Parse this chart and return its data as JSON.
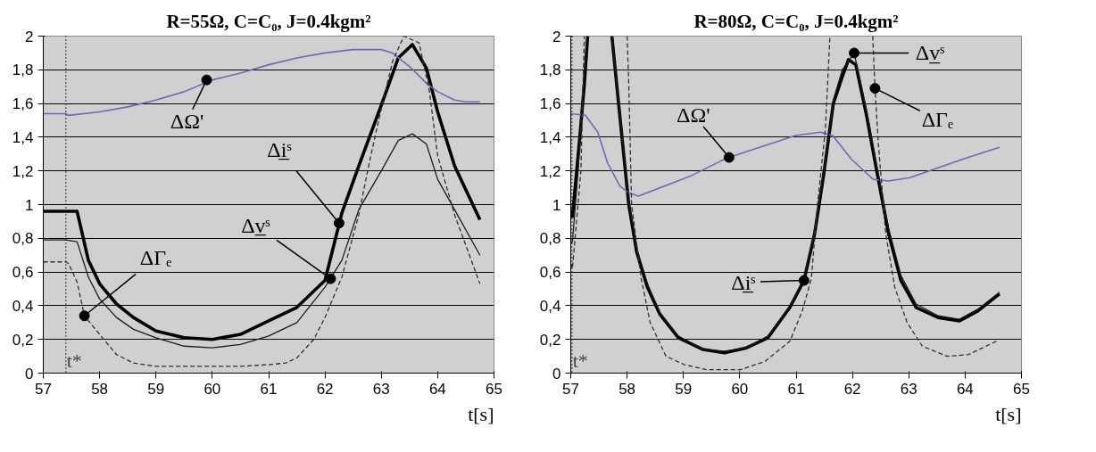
{
  "chart_data": [
    {
      "type": "line",
      "title": "R=55Ω, C=C₀, J=0.4kgm²",
      "xlabel": "t[s]",
      "xlim": [
        57,
        65
      ],
      "ylim": [
        0,
        2
      ],
      "xticks": [
        57,
        58,
        59,
        60,
        61,
        62,
        63,
        64,
        65
      ],
      "yticks": [
        0,
        {
          "value": 0.2,
          "label": "0,2"
        },
        {
          "value": 0.4,
          "label": "0,4"
        },
        {
          "value": 0.6,
          "label": "0,6"
        },
        {
          "value": 0.8,
          "label": "0,8"
        },
        1,
        {
          "value": 1.2,
          "label": "1,2"
        },
        {
          "value": 1.4,
          "label": "1,4"
        },
        {
          "value": 1.6,
          "label": "1,6"
        },
        {
          "value": 1.8,
          "label": "1,8"
        },
        2
      ],
      "grid": "y",
      "series": [
        {
          "color": "#6b6bb5",
          "line_style": "solid",
          "x": [
            57,
            57.4,
            57.45,
            58,
            58.5,
            59,
            59.5,
            60,
            60.5,
            61,
            61.5,
            62,
            62.5,
            63,
            63.2,
            63.5,
            63.8,
            64,
            64.3,
            64.5,
            64.75
          ],
          "values": [
            1.54,
            1.54,
            1.53,
            1.55,
            1.58,
            1.62,
            1.67,
            1.74,
            1.78,
            1.83,
            1.87,
            1.9,
            1.92,
            1.92,
            1.9,
            1.82,
            1.72,
            1.67,
            1.62,
            1.61,
            1.61
          ]
        },
        {
          "color": "#000000",
          "line_style": "solid",
          "x": [
            57,
            57.4,
            57.6,
            57.8,
            58,
            58.3,
            58.6,
            59,
            59.5,
            60,
            60.5,
            61,
            61.5,
            62,
            62.3,
            62.6,
            63,
            63.3,
            63.55,
            63.8,
            64,
            64.3,
            64.75
          ],
          "values": [
            0.96,
            0.96,
            0.96,
            0.67,
            0.53,
            0.41,
            0.33,
            0.25,
            0.21,
            0.2,
            0.23,
            0.31,
            0.39,
            0.55,
            0.95,
            1.23,
            1.59,
            1.87,
            1.95,
            1.81,
            1.55,
            1.23,
            0.91
          ]
        },
        {
          "color": "#1c1c1c",
          "line_style": "solid",
          "x": [
            57,
            57.4,
            57.6,
            57.8,
            58,
            58.3,
            58.6,
            59,
            59.5,
            60,
            60.5,
            61,
            61.5,
            62,
            62.3,
            62.6,
            63,
            63.3,
            63.55,
            63.8,
            64,
            64.3,
            64.75
          ],
          "values": [
            0.79,
            0.79,
            0.78,
            0.57,
            0.44,
            0.33,
            0.26,
            0.21,
            0.16,
            0.15,
            0.17,
            0.22,
            0.3,
            0.51,
            0.67,
            0.97,
            1.2,
            1.38,
            1.42,
            1.36,
            1.15,
            0.97,
            0.7
          ]
        },
        {
          "color": "#303030",
          "line_style": "dashed",
          "x": [
            57,
            57.4,
            57.45,
            57.6,
            57.73,
            58,
            58.3,
            58.6,
            59,
            59.5,
            60,
            60.5,
            61,
            61.3,
            61.5,
            61.8,
            62,
            62.3,
            62.6,
            62.8,
            63,
            63.2,
            63.4,
            63.67,
            63.85,
            64,
            64.3,
            64.75
          ],
          "values": [
            0.66,
            0.66,
            0.65,
            0.54,
            0.34,
            0.23,
            0.11,
            0.06,
            0.04,
            0.04,
            0.04,
            0.04,
            0.05,
            0.06,
            0.09,
            0.2,
            0.33,
            0.57,
            0.94,
            1.27,
            1.57,
            1.85,
            2.0,
            1.96,
            1.68,
            1.29,
            0.94,
            0.53
          ]
        }
      ],
      "ref_lines": [
        {
          "axis": "x",
          "value": 57.4,
          "label": "t*",
          "color": "#000000",
          "line_style": "dotted"
        }
      ],
      "annotations": [
        {
          "text": "ΔΩ'",
          "x": 59.9,
          "y": 1.74
        },
        {
          "text": "Δi̲ˢ",
          "x": 62.25,
          "y": 0.89
        },
        {
          "text": "Δv̲ˢ",
          "x": 62.1,
          "y": 0.56
        },
        {
          "text": "ΔΓₑ",
          "x": 57.73,
          "y": 0.34
        }
      ]
    },
    {
      "type": "line",
      "title": "R=80Ω, C=C₀, J=0.4kgm²",
      "xlabel": "t[s]",
      "xlim": [
        57,
        65
      ],
      "ylim": [
        0,
        2
      ],
      "xticks": [
        57,
        58,
        59,
        60,
        61,
        62,
        63,
        64,
        65
      ],
      "yticks": [
        0,
        {
          "value": 0.2,
          "label": "0,2"
        },
        {
          "value": 0.4,
          "label": "0,4"
        },
        {
          "value": 0.6,
          "label": "0,6"
        },
        {
          "value": 0.8,
          "label": "0,8"
        },
        1,
        {
          "value": 1.2,
          "label": "1,2"
        },
        {
          "value": 1.4,
          "label": "1,4"
        },
        {
          "value": 1.6,
          "label": "1,6"
        },
        {
          "value": 1.8,
          "label": "1,8"
        },
        2
      ],
      "grid": "y",
      "series": [
        {
          "color": "#6b6bb5",
          "line_style": "solid",
          "x": [
            57,
            57.26,
            57.48,
            57.65,
            57.87,
            58.03,
            58.2,
            59.13,
            59.67,
            59.81,
            60.99,
            61.43,
            61.65,
            61.98,
            62.37,
            62.64,
            63.02,
            63.96,
            64.61
          ],
          "values": [
            1.54,
            1.53,
            1.43,
            1.25,
            1.11,
            1.07,
            1.05,
            1.17,
            1.26,
            1.28,
            1.41,
            1.43,
            1.41,
            1.27,
            1.15,
            1.14,
            1.16,
            1.27,
            1.34
          ]
        },
        {
          "color": "#000000",
          "line_style": "solid",
          "x": [
            57,
            57.03,
            57.15,
            57.24,
            57.3,
            57.5,
            57.73,
            57.87,
            58.03,
            58.17,
            58.36,
            58.58,
            58.91,
            59.35,
            59.73,
            60.12,
            60.5,
            60.89,
            61.14,
            61.33,
            61.49,
            61.66,
            61.82,
            61.93,
            62.06,
            62.25,
            62.42,
            62.64,
            62.86,
            63.13,
            63.52,
            63.9,
            64.23,
            64.61
          ],
          "values": [
            0.95,
            0.93,
            1.36,
            1.71,
            2.0,
            null,
            2.0,
            1.53,
            1.0,
            0.72,
            0.51,
            0.35,
            0.21,
            0.14,
            0.12,
            0.15,
            0.21,
            0.39,
            0.55,
            0.83,
            1.18,
            1.6,
            1.76,
            1.86,
            1.83,
            1.53,
            1.22,
            0.83,
            0.55,
            0.39,
            0.33,
            0.31,
            0.37,
            0.47
          ]
        },
        {
          "color": "#1c1c1c",
          "line_style": "solid",
          "x": [
            57,
            57.03,
            57.13,
            57.22,
            57.29,
            57.5,
            57.73,
            57.87,
            58.03,
            58.17,
            58.36,
            58.58,
            58.91,
            59.35,
            59.73,
            60.12,
            60.5,
            60.89,
            61.14,
            61.33,
            61.49,
            61.66,
            61.82,
            62.03,
            62.25,
            62.42,
            62.64,
            62.86,
            63.13,
            63.52,
            63.9,
            64.23,
            64.61
          ],
          "values": [
            0.77,
            0.78,
            1.2,
            1.7,
            2.0,
            null,
            2.0,
            1.55,
            1.02,
            0.74,
            0.53,
            0.36,
            0.22,
            0.14,
            0.13,
            0.15,
            0.22,
            0.4,
            0.56,
            0.84,
            1.2,
            1.62,
            1.8,
            1.9,
            1.56,
            1.25,
            0.86,
            0.58,
            0.41,
            0.34,
            0.32,
            0.38,
            0.48
          ]
        },
        {
          "color": "#303030",
          "line_style": "dashed",
          "x": [
            57,
            57.03,
            57.18,
            57.24,
            57.6,
            58.0,
            58.03,
            58.08,
            58.25,
            58.41,
            58.69,
            59.02,
            59.41,
            60.01,
            60.45,
            60.89,
            61.11,
            61.27,
            61.38,
            61.52,
            61.6,
            62.0,
            62.36,
            62.4,
            62.46,
            62.59,
            62.75,
            62.97,
            63.24,
            63.68,
            64.06,
            64.56
          ],
          "values": [
            0.65,
            0.62,
            1.2,
            2.0,
            null,
            2.0,
            1.71,
            1.0,
            0.56,
            0.3,
            0.1,
            0.05,
            0.02,
            0.02,
            0.07,
            0.19,
            0.37,
            0.56,
            1.0,
            1.45,
            2.0,
            null,
            2.0,
            1.69,
            1.36,
            0.83,
            0.51,
            0.3,
            0.16,
            0.1,
            0.11,
            0.19
          ]
        }
      ],
      "ref_lines": [
        {
          "axis": "x",
          "value": 57.02,
          "label": "t*",
          "color": "#000000",
          "line_style": "dotted"
        }
      ],
      "annotations": [
        {
          "text": "ΔΩ'",
          "x": 59.81,
          "y": 1.28
        },
        {
          "text": "Δv̲ˢ",
          "x": 62.03,
          "y": 1.9
        },
        {
          "text": "ΔΓₑ",
          "x": 62.4,
          "y": 1.69
        },
        {
          "text": "Δi̲ˢ",
          "x": 61.14,
          "y": 0.55
        }
      ]
    }
  ]
}
